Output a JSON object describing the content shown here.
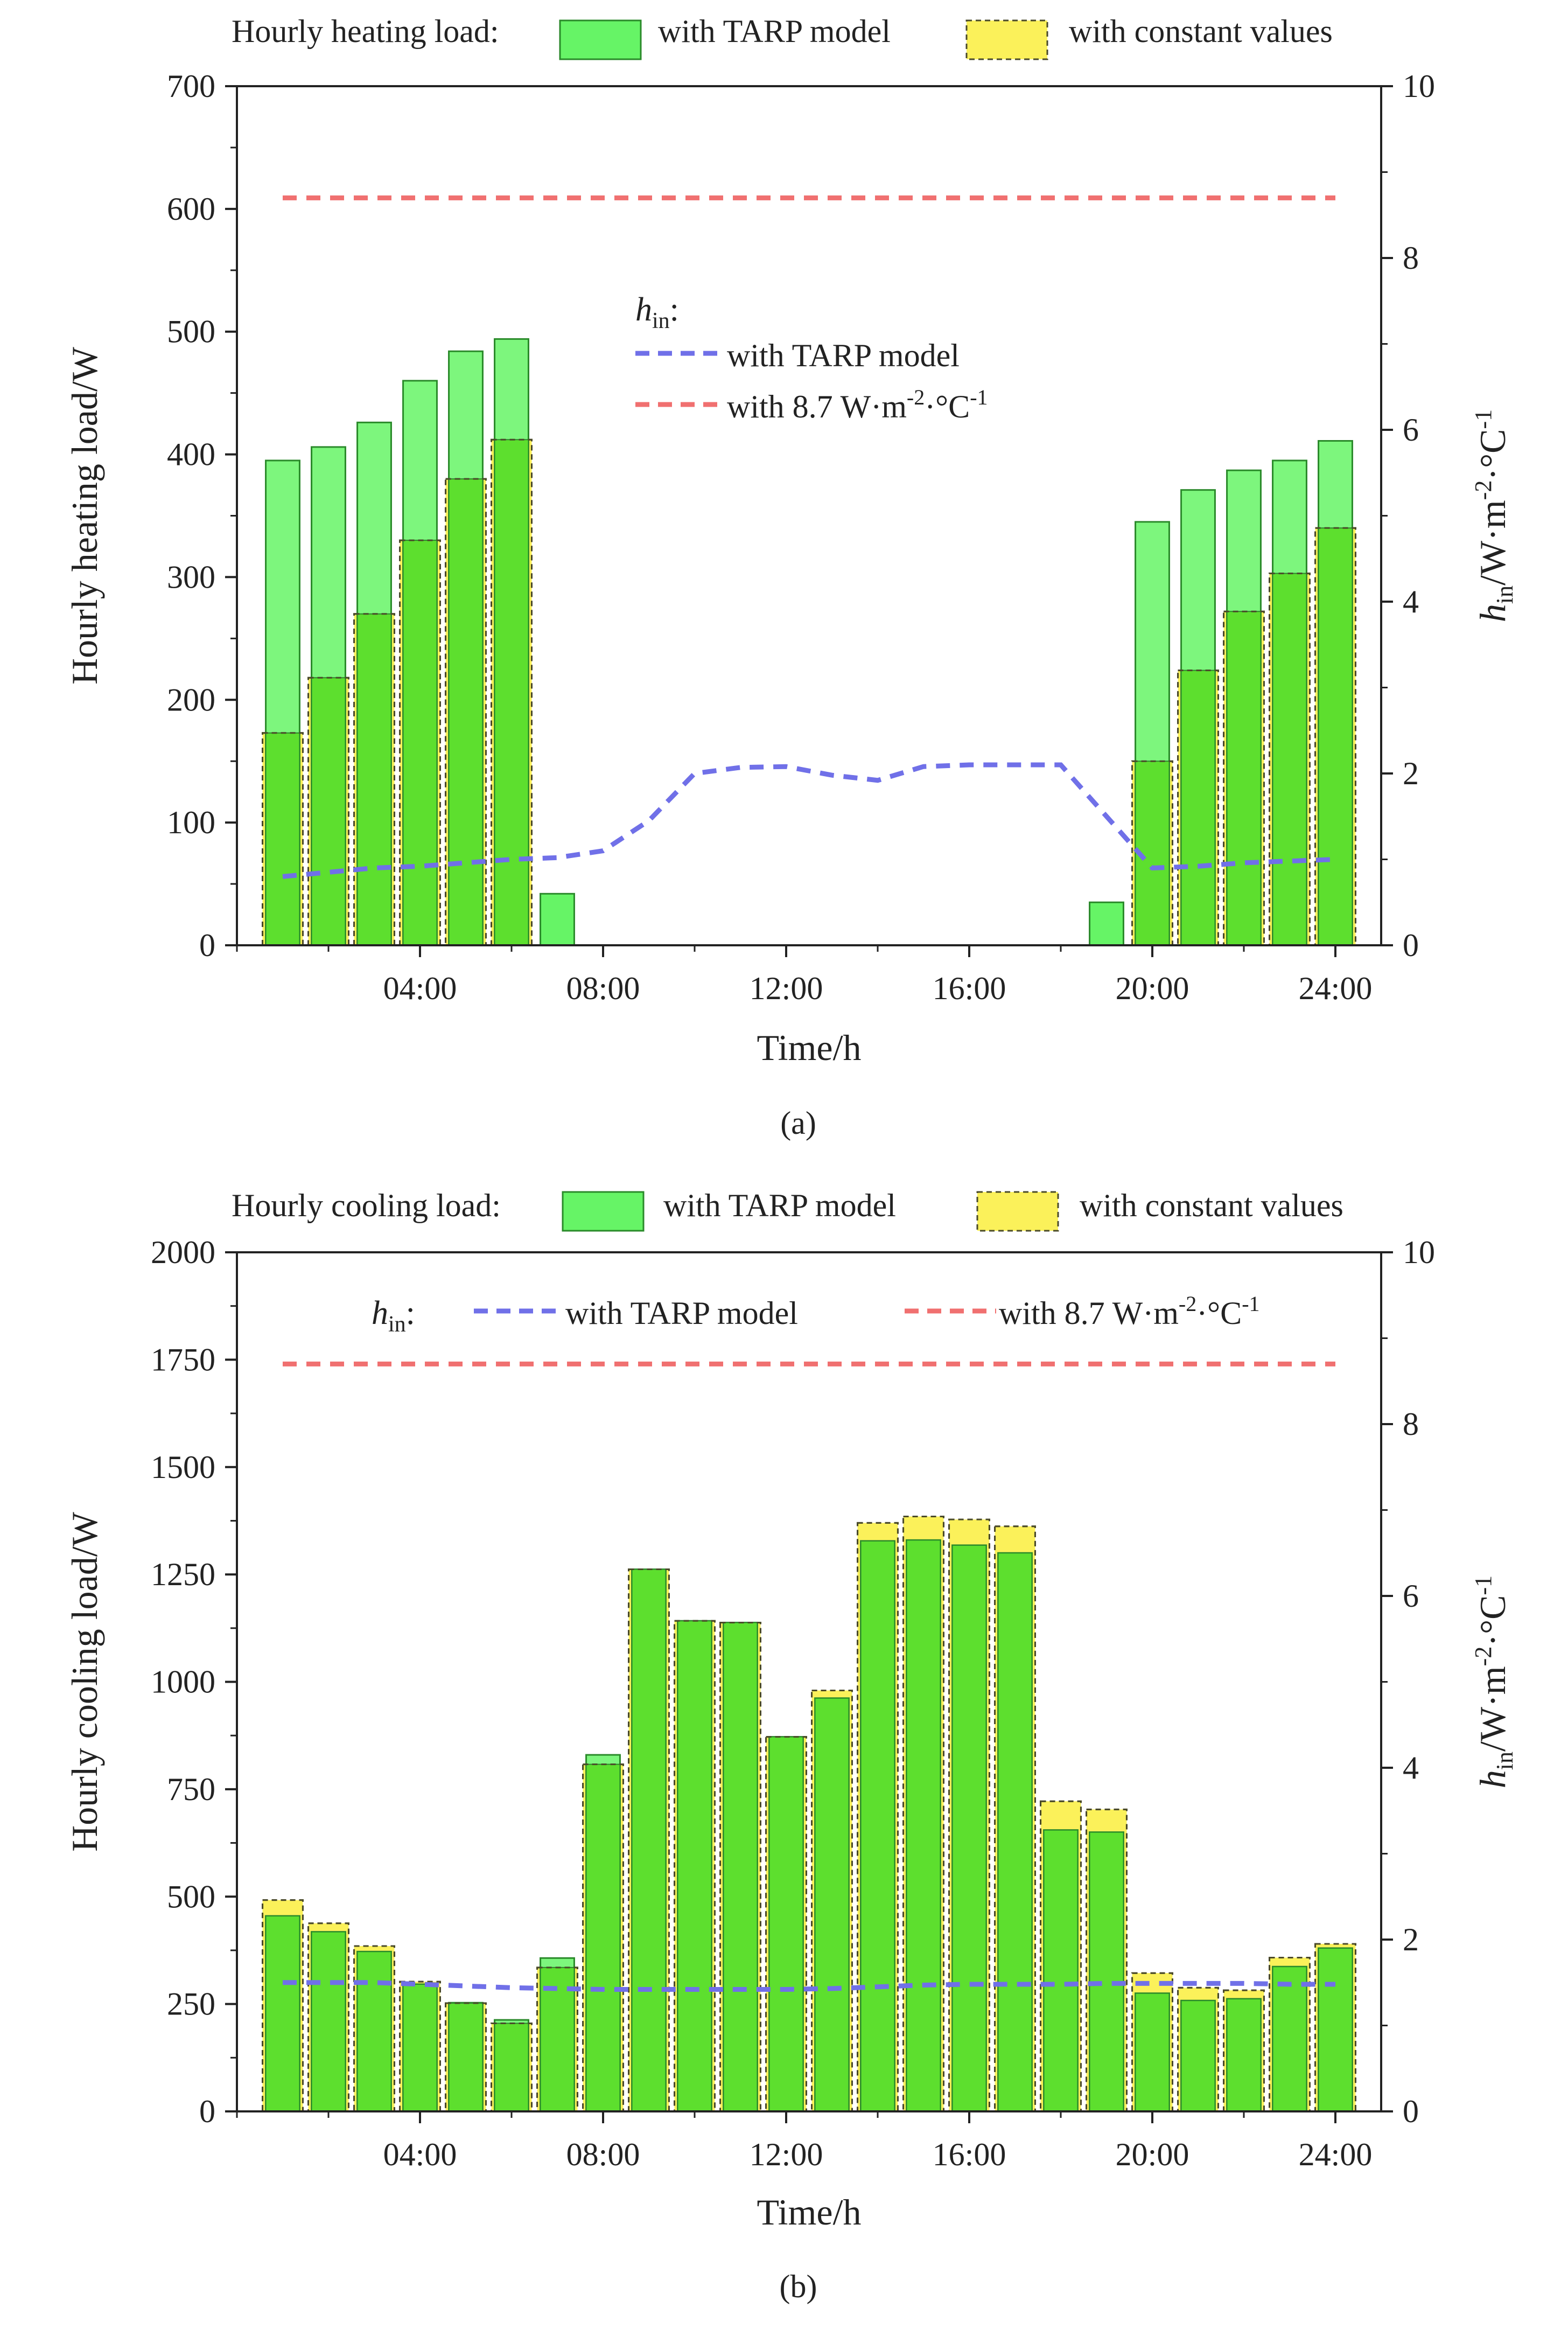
{
  "figure": {
    "background": "#ffffff"
  },
  "colors": {
    "tarp_fill": "#66f466",
    "tarp_stroke": "#2a8a2a",
    "const_fill": "#fbf15a",
    "const_stroke": "#4a4a2a",
    "overlap_fill": "#5ddf2e",
    "hin_tarp": "#7070e8",
    "hin_const": "#f07070",
    "axis": "#222222"
  },
  "chart_data": [
    {
      "type": "bar",
      "panel_label": "(a)",
      "legend_title": "Hourly heating load:",
      "legend_items": [
        "with TARP model",
        "with constant values"
      ],
      "hin_legend_title": "h",
      "hin_legend_sub": "in",
      "hin_legend_suffix": ":",
      "hin_legend_tarp": "with TARP model",
      "hin_legend_const_pre": "with 8.7 W·m",
      "hin_legend_const_sup1": "-2",
      "hin_legend_const_mid": "·°C",
      "hin_legend_const_sup2": "-1",
      "xlabel": "Time/h",
      "ylabel": "Hourly heating load/W",
      "y2label_main": "h",
      "y2label_sub": "in",
      "y2label_rest": "/W·m",
      "y2label_sup1": "-2",
      "y2label_mid": "·°C",
      "y2label_sup2": "-1",
      "hours": [
        1,
        2,
        3,
        4,
        5,
        6,
        7,
        8,
        9,
        10,
        11,
        12,
        13,
        14,
        15,
        16,
        17,
        18,
        19,
        20,
        21,
        22,
        23,
        24
      ],
      "xticks": [
        4,
        8,
        12,
        16,
        20,
        24
      ],
      "xtick_labels": [
        "04:00",
        "08:00",
        "12:00",
        "16:00",
        "20:00",
        "24:00"
      ],
      "xlim": [
        0,
        25
      ],
      "ylim": [
        0,
        700
      ],
      "yticks": [
        0,
        100,
        200,
        300,
        400,
        500,
        600,
        700
      ],
      "y2lim": [
        0,
        10
      ],
      "y2ticks": [
        0,
        2,
        4,
        6,
        8,
        10
      ],
      "series": [
        {
          "name": "with TARP model",
          "values": [
            395,
            406,
            426,
            460,
            484,
            494,
            42,
            0,
            0,
            0,
            0,
            0,
            0,
            0,
            0,
            0,
            0,
            0,
            35,
            345,
            371,
            387,
            395,
            411
          ]
        },
        {
          "name": "with constant values",
          "values": [
            173,
            218,
            270,
            330,
            380,
            412,
            0,
            0,
            0,
            0,
            0,
            0,
            0,
            0,
            0,
            0,
            0,
            0,
            0,
            150,
            224,
            272,
            303,
            340
          ]
        }
      ],
      "hin_series": [
        {
          "name": "with TARP model",
          "values": [
            0.8,
            0.85,
            0.9,
            0.92,
            0.96,
            1.0,
            1.02,
            1.1,
            1.45,
            2.0,
            2.07,
            2.08,
            1.98,
            1.92,
            2.08,
            2.1,
            2.1,
            2.1,
            1.5,
            0.9,
            0.92,
            0.96,
            0.98,
            1.0
          ]
        },
        {
          "name": "with 8.7 W·m-2·°C-1",
          "values": [
            8.7,
            8.7,
            8.7,
            8.7,
            8.7,
            8.7,
            8.7,
            8.7,
            8.7,
            8.7,
            8.7,
            8.7,
            8.7,
            8.7,
            8.7,
            8.7,
            8.7,
            8.7,
            8.7,
            8.7,
            8.7,
            8.7,
            8.7,
            8.7
          ]
        }
      ]
    },
    {
      "type": "bar",
      "panel_label": "(b)",
      "legend_title": "Hourly cooling load:",
      "legend_items": [
        "with TARP model",
        "with constant values"
      ],
      "hin_legend_title": "h",
      "hin_legend_sub": "in",
      "hin_legend_suffix": ":",
      "hin_legend_tarp": "with TARP model",
      "hin_legend_const_pre": "with 8.7 W·m",
      "hin_legend_const_sup1": "-2",
      "hin_legend_const_mid": "·°C",
      "hin_legend_const_sup2": "-1",
      "xlabel": "Time/h",
      "ylabel": "Hourly cooling load/W",
      "y2label_main": "h",
      "y2label_sub": "in",
      "y2label_rest": "/W·m",
      "y2label_sup1": "-2",
      "y2label_mid": "·°C",
      "y2label_sup2": "-1",
      "hours": [
        1,
        2,
        3,
        4,
        5,
        6,
        7,
        8,
        9,
        10,
        11,
        12,
        13,
        14,
        15,
        16,
        17,
        18,
        19,
        20,
        21,
        22,
        23,
        24
      ],
      "xticks": [
        4,
        8,
        12,
        16,
        20,
        24
      ],
      "xtick_labels": [
        "04:00",
        "08:00",
        "12:00",
        "16:00",
        "20:00",
        "24:00"
      ],
      "xlim": [
        0,
        25
      ],
      "ylim": [
        0,
        2000
      ],
      "yticks": [
        0,
        250,
        500,
        750,
        1000,
        1250,
        1500,
        1750,
        2000
      ],
      "y2lim": [
        0,
        10
      ],
      "y2ticks": [
        0,
        2,
        4,
        6,
        8,
        10
      ],
      "series": [
        {
          "name": "with TARP model",
          "values": [
            455,
            418,
            372,
            296,
            253,
            213,
            357,
            830,
            1262,
            1142,
            1138,
            872,
            962,
            1328,
            1330,
            1318,
            1300,
            655,
            650,
            275,
            258,
            262,
            337,
            380
          ]
        },
        {
          "name": "with constant values",
          "values": [
            492,
            438,
            385,
            302,
            252,
            205,
            335,
            808,
            1262,
            1142,
            1138,
            872,
            980,
            1370,
            1385,
            1378,
            1362,
            722,
            703,
            322,
            288,
            282,
            358,
            390
          ]
        }
      ],
      "hin_series": [
        {
          "name": "with TARP model",
          "values": [
            1.5,
            1.5,
            1.5,
            1.48,
            1.46,
            1.44,
            1.43,
            1.42,
            1.42,
            1.42,
            1.42,
            1.42,
            1.43,
            1.45,
            1.47,
            1.48,
            1.48,
            1.48,
            1.49,
            1.49,
            1.49,
            1.49,
            1.48,
            1.48
          ]
        },
        {
          "name": "with 8.7 W·m-2·°C-1",
          "values": [
            8.7,
            8.7,
            8.7,
            8.7,
            8.7,
            8.7,
            8.7,
            8.7,
            8.7,
            8.7,
            8.7,
            8.7,
            8.7,
            8.7,
            8.7,
            8.7,
            8.7,
            8.7,
            8.7,
            8.7,
            8.7,
            8.7,
            8.7,
            8.7
          ]
        }
      ]
    }
  ]
}
